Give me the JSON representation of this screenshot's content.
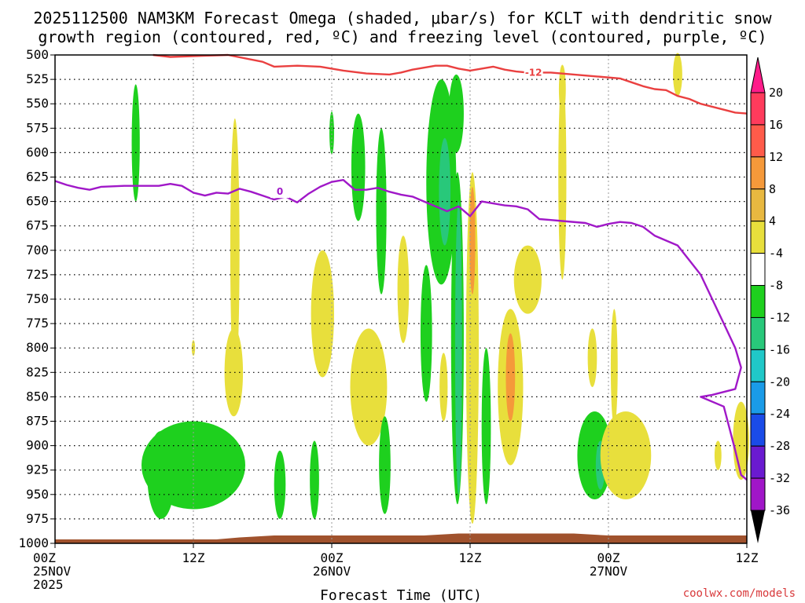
{
  "chart_data": {
    "type": "heatmap",
    "title_lines": [
      "2025112500 NAM3KM Forecast Omega (shaded, μbar/s) for KCLT with dendritic snow",
      "growth region (contoured, red, ºC) and freezing level (contoured, purple, ºC)"
    ],
    "xlabel": "Forecast Time (UTC)",
    "credit": "coolwx.com/models",
    "x_range_hours": [
      0,
      60
    ],
    "x_ticks": [
      {
        "hour": 0,
        "lines": [
          "00Z",
          "25NOV",
          "2025"
        ]
      },
      {
        "hour": 12,
        "lines": [
          "12Z"
        ]
      },
      {
        "hour": 24,
        "lines": [
          "00Z",
          "26NOV"
        ]
      },
      {
        "hour": 36,
        "lines": [
          "12Z"
        ]
      },
      {
        "hour": 48,
        "lines": [
          "00Z",
          "27NOV"
        ]
      },
      {
        "hour": 60,
        "lines": [
          "12Z"
        ]
      }
    ],
    "y_range_hpa": [
      500,
      1000
    ],
    "y_ticks": [
      "500",
      "525",
      "550",
      "575",
      "600",
      "625",
      "650",
      "675",
      "700",
      "725",
      "750",
      "775",
      "800",
      "825",
      "850",
      "875",
      "900",
      "925",
      "950",
      "975",
      "1000"
    ],
    "colorbar": {
      "labels": [
        "20",
        "16",
        "12",
        "8",
        "4",
        "-4",
        "-8",
        "-12",
        "-16",
        "-20",
        "-24",
        "-28",
        "-32",
        "-36"
      ],
      "colors": [
        "#ff3b5c",
        "#ff5b4a",
        "#f5993a",
        "#e8b840",
        "#e8df3c",
        "#ffffff",
        "#1ed01e",
        "#28c87a",
        "#20c8c8",
        "#1a9be8",
        "#1a4be8",
        "#6a1ad0",
        "#a016c8",
        "#a8a8a8"
      ],
      "top_arrow_color": "#ff1c8a",
      "bottom_arrow_color": "#000000"
    },
    "series": [
      {
        "name": "Dendritic growth region (-12 ºC)",
        "color": "#ea4040",
        "label": "-12",
        "label_at": {
          "hour": 41.5,
          "hpa": 518
        },
        "points": [
          [
            8.5,
            500
          ],
          [
            10,
            502
          ],
          [
            15,
            500
          ],
          [
            18,
            507
          ],
          [
            19,
            512
          ],
          [
            21,
            511
          ],
          [
            23,
            512
          ],
          [
            25,
            516
          ],
          [
            27,
            519
          ],
          [
            29,
            520
          ],
          [
            30,
            518
          ],
          [
            31,
            515
          ],
          [
            33,
            511
          ],
          [
            34,
            511
          ],
          [
            35,
            514
          ],
          [
            36,
            516
          ],
          [
            37,
            514
          ],
          [
            38,
            512
          ],
          [
            39,
            515
          ],
          [
            40,
            517
          ],
          [
            41,
            518
          ],
          [
            43,
            518
          ],
          [
            45,
            520
          ],
          [
            47,
            522
          ],
          [
            49,
            524
          ],
          [
            50,
            528
          ],
          [
            51,
            532
          ],
          [
            52,
            535
          ],
          [
            53,
            536
          ],
          [
            54,
            542
          ],
          [
            55,
            545
          ],
          [
            56,
            550
          ],
          [
            57,
            553
          ],
          [
            58,
            556
          ],
          [
            59,
            559
          ],
          [
            60,
            560
          ]
        ]
      },
      {
        "name": "Freezing level (0 ºC)",
        "color": "#a018c8",
        "label": "0",
        "label_at": {
          "hour": 19.5,
          "hpa": 640
        },
        "points": [
          [
            0,
            629
          ],
          [
            1,
            633
          ],
          [
            2,
            636
          ],
          [
            3,
            638
          ],
          [
            4,
            635
          ],
          [
            6,
            634
          ],
          [
            8,
            634
          ],
          [
            9,
            634
          ],
          [
            10,
            632
          ],
          [
            11,
            634
          ],
          [
            12,
            641
          ],
          [
            13,
            644
          ],
          [
            14,
            641
          ],
          [
            15,
            642
          ],
          [
            16,
            637
          ],
          [
            17,
            640
          ],
          [
            18,
            644
          ],
          [
            19,
            648
          ],
          [
            20,
            645
          ],
          [
            21,
            651
          ],
          [
            22,
            642
          ],
          [
            23,
            635
          ],
          [
            24,
            630
          ],
          [
            25,
            628
          ],
          [
            26,
            638
          ],
          [
            27,
            638
          ],
          [
            28,
            636
          ],
          [
            29,
            640
          ],
          [
            30,
            643
          ],
          [
            31,
            645
          ],
          [
            32,
            650
          ],
          [
            33,
            655
          ],
          [
            34,
            660
          ],
          [
            35,
            655
          ],
          [
            36,
            665
          ],
          [
            37,
            650
          ],
          [
            38,
            652
          ],
          [
            39,
            654
          ],
          [
            40,
            655
          ],
          [
            41,
            658
          ],
          [
            42,
            668
          ],
          [
            43,
            669
          ],
          [
            44,
            670
          ],
          [
            46,
            672
          ],
          [
            47,
            676
          ],
          [
            48,
            673
          ],
          [
            49,
            671
          ],
          [
            50,
            672
          ],
          [
            51,
            676
          ],
          [
            52,
            685
          ],
          [
            53,
            690
          ],
          [
            54,
            695
          ],
          [
            55,
            710
          ],
          [
            56,
            725
          ],
          [
            57,
            750
          ],
          [
            58,
            775
          ],
          [
            59,
            800
          ],
          [
            59.5,
            820
          ],
          [
            59,
            842
          ],
          [
            57,
            848
          ],
          [
            56,
            850
          ],
          [
            58,
            860
          ],
          [
            59,
            905
          ],
          [
            59.5,
            930
          ],
          [
            60,
            935
          ]
        ]
      }
    ],
    "omega_blobs": [
      {
        "center": {
          "hour": 7,
          "hpa": 590
        },
        "half_width_h": 0.35,
        "half_depth_hpa": 60,
        "fill": "#1ed01e"
      },
      {
        "center": {
          "hour": 12,
          "hpa": 920
        },
        "half_width_h": 4.5,
        "half_depth_hpa": 45,
        "fill": "#1ed01e"
      },
      {
        "center": {
          "hour": 9.2,
          "hpa": 930
        },
        "half_width_h": 1.2,
        "half_depth_hpa": 45,
        "fill": "#1ed01e"
      },
      {
        "center": {
          "hour": 12,
          "hpa": 800
        },
        "half_width_h": 0.15,
        "half_depth_hpa": 8,
        "fill": "#e8df3c"
      },
      {
        "center": {
          "hour": 15.6,
          "hpa": 700
        },
        "half_width_h": 0.4,
        "half_depth_hpa": 135,
        "fill": "#e8df3c"
      },
      {
        "center": {
          "hour": 15.5,
          "hpa": 825
        },
        "half_width_h": 0.8,
        "half_depth_hpa": 45,
        "fill": "#e8df3c"
      },
      {
        "center": {
          "hour": 19.5,
          "hpa": 940
        },
        "half_width_h": 0.5,
        "half_depth_hpa": 35,
        "fill": "#1ed01e"
      },
      {
        "center": {
          "hour": 23.2,
          "hpa": 765
        },
        "half_width_h": 1.0,
        "half_depth_hpa": 65,
        "fill": "#e8df3c"
      },
      {
        "center": {
          "hour": 22.5,
          "hpa": 935
        },
        "half_width_h": 0.4,
        "half_depth_hpa": 40,
        "fill": "#1ed01e"
      },
      {
        "center": {
          "hour": 24,
          "hpa": 580
        },
        "half_width_h": 0.2,
        "half_depth_hpa": 22,
        "fill": "#1ed01e"
      },
      {
        "center": {
          "hour": 26.3,
          "hpa": 615
        },
        "half_width_h": 0.6,
        "half_depth_hpa": 55,
        "fill": "#1ed01e"
      },
      {
        "center": {
          "hour": 27.2,
          "hpa": 840
        },
        "half_width_h": 1.6,
        "half_depth_hpa": 60,
        "fill": "#e8df3c"
      },
      {
        "center": {
          "hour": 28.3,
          "hpa": 660
        },
        "half_width_h": 0.45,
        "half_depth_hpa": 85,
        "fill": "#1ed01e"
      },
      {
        "center": {
          "hour": 28.6,
          "hpa": 920
        },
        "half_width_h": 0.5,
        "half_depth_hpa": 50,
        "fill": "#1ed01e"
      },
      {
        "center": {
          "hour": 30.2,
          "hpa": 740
        },
        "half_width_h": 0.5,
        "half_depth_hpa": 55,
        "fill": "#e8df3c"
      },
      {
        "center": {
          "hour": 32.2,
          "hpa": 785
        },
        "half_width_h": 0.5,
        "half_depth_hpa": 70,
        "fill": "#1ed01e"
      },
      {
        "center": {
          "hour": 33.7,
          "hpa": 840
        },
        "half_width_h": 0.35,
        "half_depth_hpa": 35,
        "fill": "#e8df3c"
      },
      {
        "center": {
          "hour": 33.5,
          "hpa": 630
        },
        "half_width_h": 1.3,
        "half_depth_hpa": 105,
        "fill": "#1ed01e"
      },
      {
        "center": {
          "hour": 33.8,
          "hpa": 640
        },
        "half_width_h": 0.5,
        "half_depth_hpa": 55,
        "fill": "#28c87a"
      },
      {
        "center": {
          "hour": 34.8,
          "hpa": 560
        },
        "half_width_h": 0.65,
        "half_depth_hpa": 40,
        "fill": "#1ed01e"
      },
      {
        "center": {
          "hour": 34.9,
          "hpa": 790
        },
        "half_width_h": 0.55,
        "half_depth_hpa": 170,
        "fill": "#1ed01e"
      },
      {
        "center": {
          "hour": 35.0,
          "hpa": 800
        },
        "half_width_h": 0.3,
        "half_depth_hpa": 150,
        "fill": "#28c87a"
      },
      {
        "center": {
          "hour": 36.2,
          "hpa": 800
        },
        "half_width_h": 0.55,
        "half_depth_hpa": 180,
        "fill": "#e8df3c"
      },
      {
        "center": {
          "hour": 36.2,
          "hpa": 690
        },
        "half_width_h": 0.25,
        "half_depth_hpa": 55,
        "fill": "#f5993a"
      },
      {
        "center": {
          "hour": 37.4,
          "hpa": 880
        },
        "half_width_h": 0.4,
        "half_depth_hpa": 80,
        "fill": "#1ed01e"
      },
      {
        "center": {
          "hour": 39.5,
          "hpa": 840
        },
        "half_width_h": 1.1,
        "half_depth_hpa": 80,
        "fill": "#e8df3c"
      },
      {
        "center": {
          "hour": 39.5,
          "hpa": 830
        },
        "half_width_h": 0.4,
        "half_depth_hpa": 45,
        "fill": "#f5993a"
      },
      {
        "center": {
          "hour": 41.0,
          "hpa": 730
        },
        "half_width_h": 1.2,
        "half_depth_hpa": 35,
        "fill": "#e8df3c"
      },
      {
        "center": {
          "hour": 44.0,
          "hpa": 625
        },
        "half_width_h": 0.35,
        "half_depth_hpa": 105,
        "fill": "#e8df3c"
      },
      {
        "center": {
          "hour": 44.0,
          "hpa": 535
        },
        "half_width_h": 0.3,
        "half_depth_hpa": 25,
        "fill": "#e8df3c"
      },
      {
        "center": {
          "hour": 46.6,
          "hpa": 810
        },
        "half_width_h": 0.4,
        "half_depth_hpa": 30,
        "fill": "#e8df3c"
      },
      {
        "center": {
          "hour": 46.8,
          "hpa": 910
        },
        "half_width_h": 1.5,
        "half_depth_hpa": 45,
        "fill": "#1ed01e"
      },
      {
        "center": {
          "hour": 47.3,
          "hpa": 920
        },
        "half_width_h": 0.4,
        "half_depth_hpa": 25,
        "fill": "#28c87a"
      },
      {
        "center": {
          "hour": 49.5,
          "hpa": 910
        },
        "half_width_h": 2.2,
        "half_depth_hpa": 45,
        "fill": "#e8df3c"
      },
      {
        "center": {
          "hour": 48.5,
          "hpa": 820
        },
        "half_width_h": 0.3,
        "half_depth_hpa": 60,
        "fill": "#e8df3c"
      },
      {
        "center": {
          "hour": 54.0,
          "hpa": 520
        },
        "half_width_h": 0.4,
        "half_depth_hpa": 22,
        "fill": "#e8df3c"
      },
      {
        "center": {
          "hour": 57.5,
          "hpa": 910
        },
        "half_width_h": 0.3,
        "half_depth_hpa": 15,
        "fill": "#e8df3c"
      },
      {
        "center": {
          "hour": 59.5,
          "hpa": 895
        },
        "half_width_h": 0.7,
        "half_depth_hpa": 40,
        "fill": "#e8df3c"
      }
    ],
    "terrain": {
      "fill": "#a0522d",
      "top_hpa": [
        [
          0,
          996
        ],
        [
          14,
          996
        ],
        [
          16,
          994
        ],
        [
          19,
          992
        ],
        [
          32,
          992
        ],
        [
          35,
          990
        ],
        [
          45,
          990
        ],
        [
          48,
          992
        ],
        [
          60,
          992
        ]
      ]
    }
  }
}
